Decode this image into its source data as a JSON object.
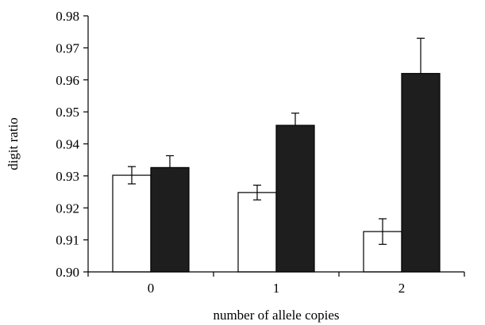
{
  "chart_data": {
    "type": "bar",
    "xlabel": "number of allele copies",
    "ylabel": "digit ratio",
    "ylim": [
      0.9,
      0.98
    ],
    "yticks": [
      "0.90",
      "0.91",
      "0.92",
      "0.93",
      "0.94",
      "0.95",
      "0.96",
      "0.97",
      "0.98"
    ],
    "categories": [
      "0",
      "1",
      "2"
    ],
    "grid": false,
    "legend": "none",
    "series": [
      {
        "fill": "#ffffff",
        "values": [
          0.9302,
          0.9248,
          0.9126
        ],
        "error": [
          0.0027,
          0.0023,
          0.004
        ]
      },
      {
        "fill": "#1e1e1e",
        "values": [
          0.9326,
          0.9458,
          0.962
        ],
        "error": [
          0.0037,
          0.0038,
          0.011
        ]
      }
    ]
  }
}
